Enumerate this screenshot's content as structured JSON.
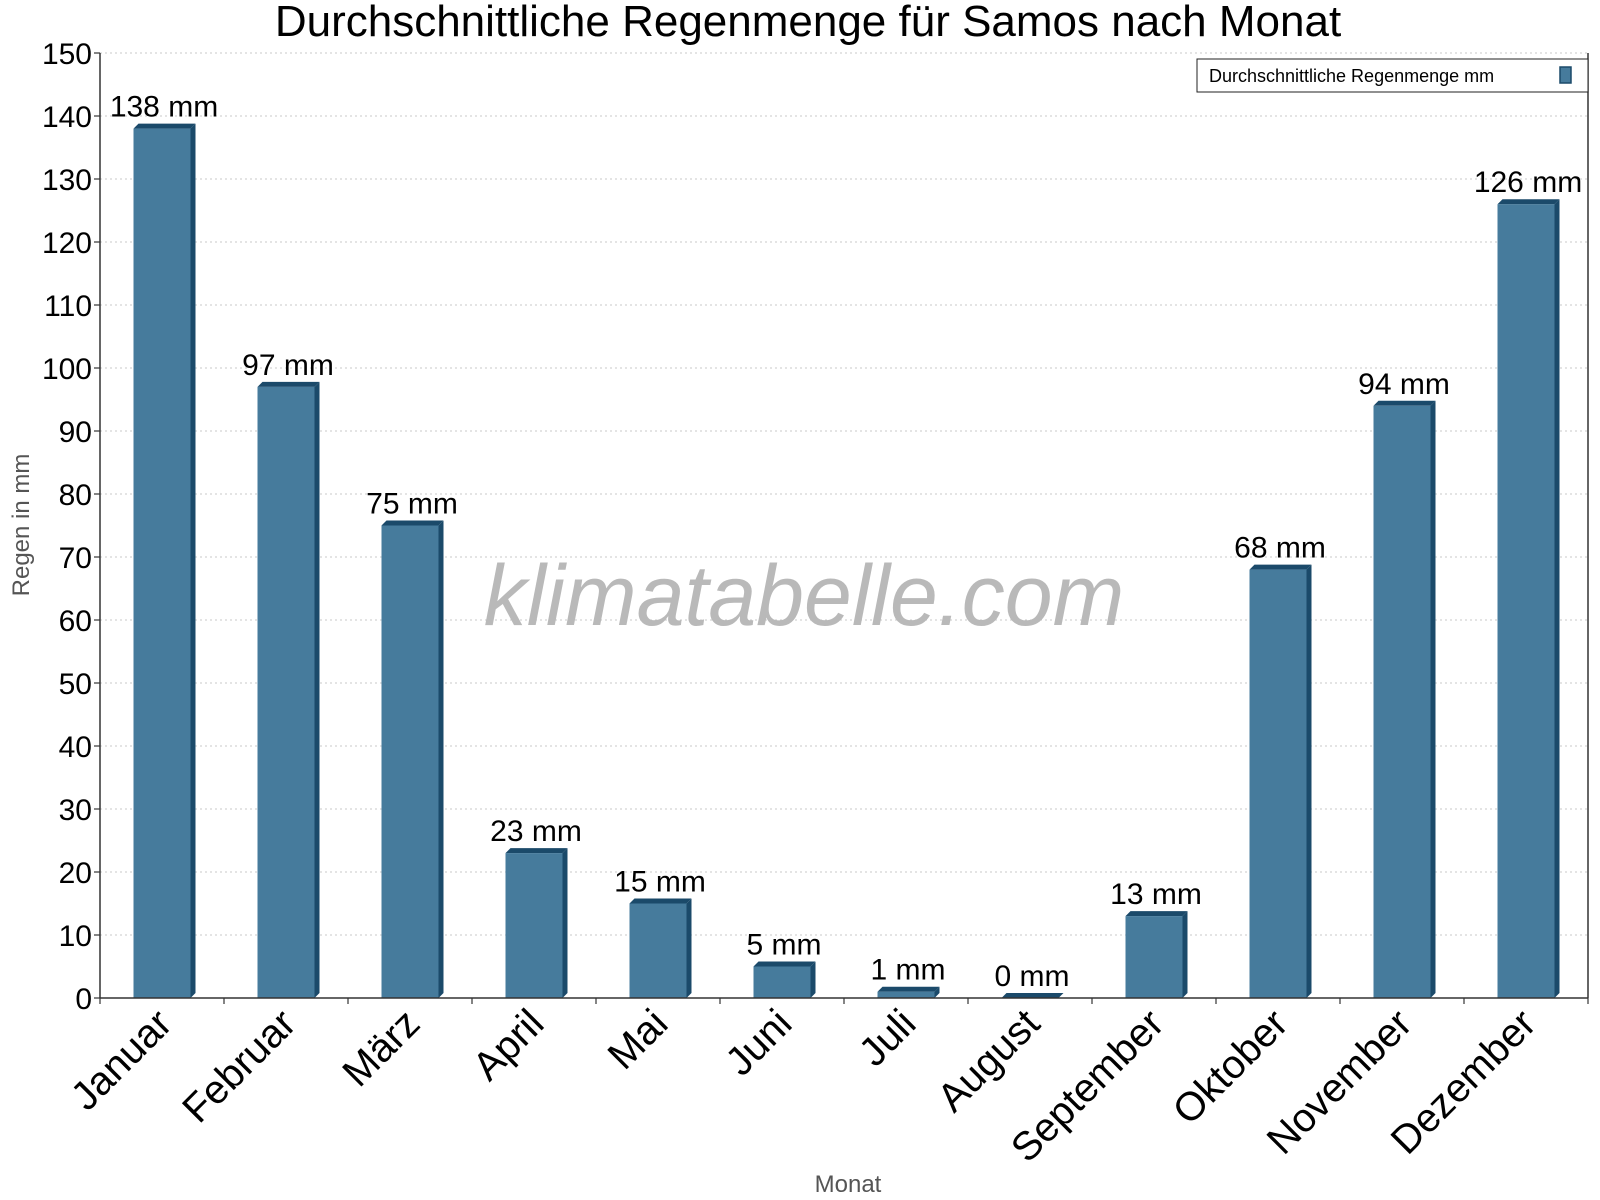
{
  "chart_data": {
    "type": "bar",
    "title": "Durchschnittliche Regenmenge für Samos nach Monat",
    "xlabel": "Monat",
    "ylabel": "Regen in mm",
    "ylim": [
      0,
      150
    ],
    "ytick_step": 10,
    "grid": true,
    "legend_position": "top-right",
    "categories": [
      "Januar",
      "Februar",
      "März",
      "April",
      "Mai",
      "Juni",
      "Juli",
      "August",
      "September",
      "Oktober",
      "November",
      "Dezember"
    ],
    "series": [
      {
        "name": "Durchschnittliche Regenmenge mm",
        "values": [
          138,
          97,
          75,
          23,
          15,
          5,
          1,
          0,
          13,
          68,
          94,
          126
        ],
        "value_labels": [
          "138 mm",
          "97 mm",
          "75 mm",
          "23 mm",
          "15 mm",
          "5 mm",
          "1 mm",
          "0 mm",
          "13 mm",
          "68 mm",
          "94 mm",
          "126 mm"
        ],
        "color": "#467b9c",
        "edge_color": "#1b4a6a"
      }
    ]
  },
  "watermark": "klimatabelle.com"
}
